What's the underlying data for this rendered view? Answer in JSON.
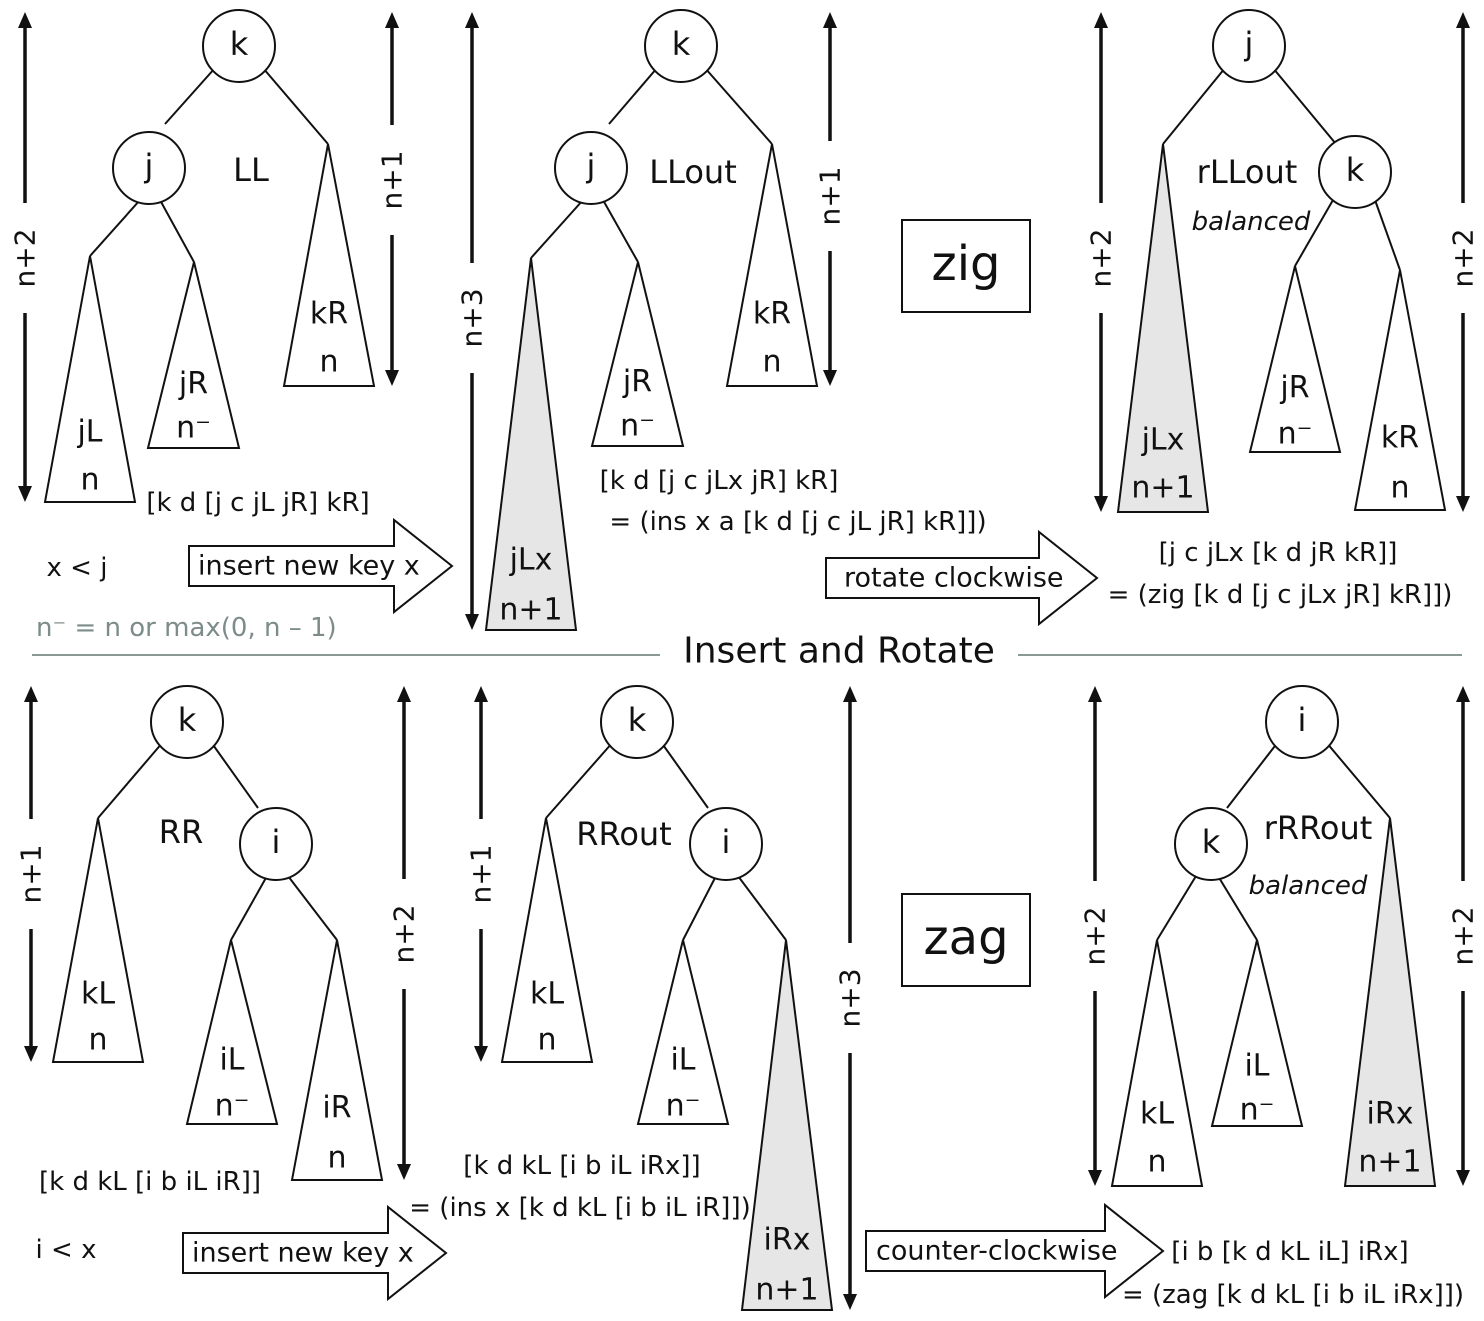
{
  "title": "Insert and Rotate",
  "note": "n⁻ = n or max(0, n – 1)",
  "colors": {
    "stroke": "#111111",
    "shade": "#e6e6e6",
    "note": "#7d8c8a",
    "divider": "#8a9896"
  },
  "zig": {
    "box_label": "zig",
    "arrow1_label": "insert new key x",
    "arrow2_label": "rotate clockwise",
    "condition": "x < j",
    "panel1": {
      "root": "k",
      "child": "j",
      "case_label": "LL",
      "jL": [
        "jL",
        "n"
      ],
      "jR": [
        "jR",
        "n⁻"
      ],
      "kR": [
        "kR",
        "n"
      ],
      "height_left": "n+2",
      "height_right": "n+1",
      "expr": "[k d [j c jL jR] kR]"
    },
    "panel2": {
      "root": "k",
      "child": "j",
      "case_label": "LLout",
      "jLx": [
        "jLx",
        "n+1"
      ],
      "jR": [
        "jR",
        "n⁻"
      ],
      "kR": [
        "kR",
        "n"
      ],
      "height_left": "n+3",
      "height_right": "n+1",
      "expr": "[k d [j c jLx jR] kR]",
      "expr2": "= (ins x a [k d [j c jL jR] kR]])"
    },
    "panel3": {
      "root": "j",
      "child": "k",
      "case_label": "rLLout",
      "balanced": "balanced",
      "jLx": [
        "jLx",
        "n+1"
      ],
      "jR": [
        "jR",
        "n⁻"
      ],
      "kR": [
        "kR",
        "n"
      ],
      "height_left": "n+2",
      "height_right": "n+2",
      "expr": "[j c jLx [k d jR kR]]",
      "expr2": "= (zig [k d [j c jLx jR] kR]])"
    }
  },
  "zag": {
    "box_label": "zag",
    "arrow1_label": "insert new key x",
    "arrow2_label": "counter-clockwise",
    "condition": "i < x",
    "panel1": {
      "root": "k",
      "child": "i",
      "case_label": "RR",
      "kL": [
        "kL",
        "n"
      ],
      "iL": [
        "iL",
        "n⁻"
      ],
      "iR": [
        "iR",
        "n"
      ],
      "height_left": "n+1",
      "height_right": "n+2",
      "expr": "[k d kL [i b iL iR]]"
    },
    "panel2": {
      "root": "k",
      "child": "i",
      "case_label": "RRout",
      "kL": [
        "kL",
        "n"
      ],
      "iL": [
        "iL",
        "n⁻"
      ],
      "iRx": [
        "iRx",
        "n+1"
      ],
      "height_left": "n+1",
      "height_right": "n+3",
      "expr": "[k d kL [i b iL iRx]]",
      "expr2": "= (ins x [k d kL [i b iL iR]])"
    },
    "panel3": {
      "root": "i",
      "child": "k",
      "case_label": "rRRout",
      "balanced": "balanced",
      "kL": [
        "kL",
        "n"
      ],
      "iL": [
        "iL",
        "n⁻"
      ],
      "iRx": [
        "iRx",
        "n+1"
      ],
      "height_left": "n+2",
      "height_right": "n+2",
      "expr": "[i b [k d kL iL] iRx]",
      "expr2": "= (zag [k d kL [i b iL iRx]])"
    }
  }
}
